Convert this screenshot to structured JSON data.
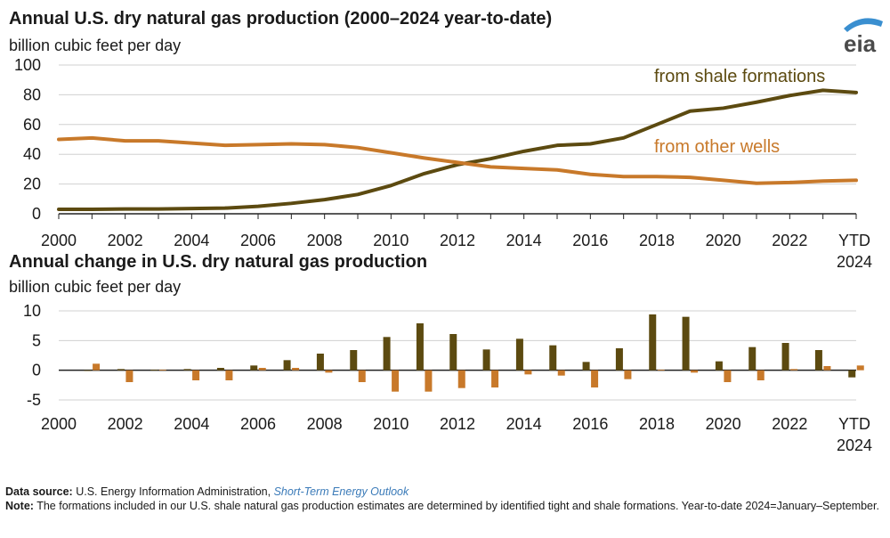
{
  "top_chart": {
    "title": "Annual U.S. dry natural gas production (2000–2024 year-to-date)",
    "unit": "billion cubic feet per day"
  },
  "bottom_chart": {
    "title": "Annual change in U.S. dry natural gas production",
    "unit": "billion cubic feet per day"
  },
  "logo": {
    "text": "eia",
    "icon": "eia-logo-icon"
  },
  "footer": {
    "source_label": "Data source:",
    "source_text": "U.S. Energy Information Administration,",
    "source_link": "Short-Term Energy Outlook",
    "note_label": "Note:",
    "note_text": "The formations included in our U.S. shale natural gas production estimates are determined by identified tight and shale formations. Year-to-date 2024=January–September."
  },
  "colors": {
    "shale": "#5c4a10",
    "other": "#c8792a",
    "gridline": "#d0d0d0",
    "axis": "#222222"
  },
  "chart_data": [
    {
      "type": "line",
      "title": "Annual U.S. dry natural gas production (2000–2024 year-to-date)",
      "ylabel": "billion cubic feet per day",
      "ylim": [
        0,
        100
      ],
      "yticks": [
        "0",
        "20",
        "40",
        "60",
        "80",
        "100"
      ],
      "categories": [
        "2000",
        "2001",
        "2002",
        "2003",
        "2004",
        "2005",
        "2006",
        "2007",
        "2008",
        "2009",
        "2010",
        "2011",
        "2012",
        "2013",
        "2014",
        "2015",
        "2016",
        "2017",
        "2018",
        "2019",
        "2020",
        "2021",
        "2022",
        "2023",
        "YTD 2024"
      ],
      "xtick_labels": [
        [
          "2000"
        ],
        [
          ""
        ],
        [
          "2002"
        ],
        [
          ""
        ],
        [
          "2004"
        ],
        [
          ""
        ],
        [
          "2006"
        ],
        [
          ""
        ],
        [
          "2008"
        ],
        [
          ""
        ],
        [
          "2010"
        ],
        [
          ""
        ],
        [
          "2012"
        ],
        [
          ""
        ],
        [
          "2014"
        ],
        [
          ""
        ],
        [
          "2016"
        ],
        [
          ""
        ],
        [
          "2018"
        ],
        [
          ""
        ],
        [
          "2020"
        ],
        [
          ""
        ],
        [
          "2022"
        ],
        [
          ""
        ],
        [
          "YTD",
          "2024"
        ]
      ],
      "series": [
        {
          "name": "from shale formations",
          "color": "#5c4a10",
          "values": [
            3,
            3,
            3.2,
            3.2,
            3.5,
            3.8,
            5,
            7,
            9.5,
            13,
            19,
            27,
            33,
            37,
            42,
            46,
            47,
            51,
            60,
            69,
            71,
            75,
            79.5,
            83,
            81.5
          ]
        },
        {
          "name": "from other wells",
          "color": "#c8792a",
          "values": [
            50,
            51,
            49,
            49,
            47.5,
            46,
            46.5,
            47,
            46.5,
            44.5,
            41,
            37.5,
            34.5,
            31.5,
            30.5,
            29.5,
            26.5,
            25,
            25,
            24.5,
            22.5,
            20.5,
            21,
            22,
            22.5
          ]
        }
      ]
    },
    {
      "type": "bar",
      "title": "Annual change in U.S. dry natural gas production",
      "ylabel": "billion cubic feet per day",
      "ylim": [
        -5,
        10
      ],
      "yticks": [
        "-5",
        "0",
        "5",
        "10"
      ],
      "categories": [
        "2000",
        "2001",
        "2002",
        "2003",
        "2004",
        "2005",
        "2006",
        "2007",
        "2008",
        "2009",
        "2010",
        "2011",
        "2012",
        "2013",
        "2014",
        "2015",
        "2016",
        "2017",
        "2018",
        "2019",
        "2020",
        "2021",
        "2022",
        "2023",
        "YTD 2024"
      ],
      "xtick_labels": [
        [
          "2000"
        ],
        [
          ""
        ],
        [
          "2002"
        ],
        [
          ""
        ],
        [
          "2004"
        ],
        [
          ""
        ],
        [
          "2006"
        ],
        [
          ""
        ],
        [
          "2008"
        ],
        [
          ""
        ],
        [
          "2010"
        ],
        [
          ""
        ],
        [
          "2012"
        ],
        [
          ""
        ],
        [
          "2014"
        ],
        [
          ""
        ],
        [
          "2016"
        ],
        [
          ""
        ],
        [
          "2018"
        ],
        [
          ""
        ],
        [
          "2020"
        ],
        [
          ""
        ],
        [
          "2022"
        ],
        [
          ""
        ],
        [
          "YTD",
          "2024"
        ]
      ],
      "series": [
        {
          "name": "from shale formations",
          "color": "#5c4a10",
          "values": [
            null,
            0,
            0.2,
            0.1,
            0.2,
            0.4,
            0.8,
            1.7,
            2.8,
            3.4,
            5.6,
            7.9,
            6.1,
            3.5,
            5.3,
            4.2,
            1.4,
            3.7,
            9.4,
            9.0,
            1.5,
            3.9,
            4.6,
            3.4,
            -1.2
          ]
        },
        {
          "name": "from other wells",
          "color": "#c8792a",
          "values": [
            null,
            1.1,
            -2.0,
            0.1,
            -1.7,
            -1.7,
            0.4,
            0.4,
            -0.4,
            -2.0,
            -3.6,
            -3.6,
            -3.0,
            -2.9,
            -0.7,
            -0.9,
            -2.9,
            -1.5,
            0.1,
            -0.4,
            -2.0,
            -1.7,
            0.2,
            0.7,
            0.8
          ]
        }
      ]
    }
  ]
}
